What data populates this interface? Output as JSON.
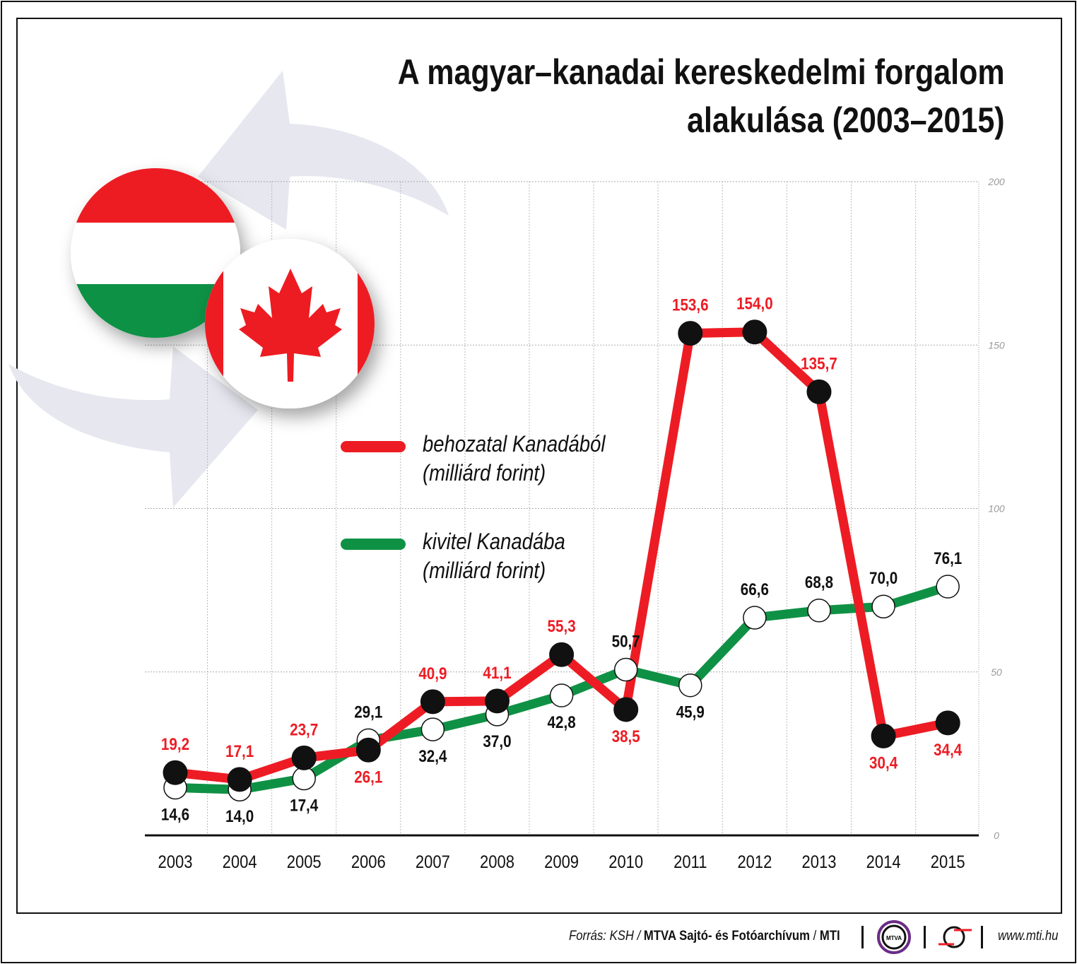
{
  "chart_data": {
    "type": "line",
    "title": "A magyar–kanadai kereskedelmi forgalom alakulása (2003–2015)",
    "title_lines": [
      "A magyar–kanadai kereskedelmi forgalom",
      "alakulása (2003–2015)"
    ],
    "categories": [
      "2003",
      "2004",
      "2005",
      "2006",
      "2007",
      "2008",
      "2009",
      "2010",
      "2011",
      "2012",
      "2013",
      "2014",
      "2015"
    ],
    "ylim": [
      0,
      200
    ],
    "yticks": [
      "0",
      "50",
      "100",
      "150",
      "200"
    ],
    "grid": true,
    "legend_position": "center-left",
    "series": [
      {
        "name": "behozatal Kanadából",
        "unit": "(milliárd forint)",
        "color": "#ed1c24",
        "values": [
          19.2,
          17.1,
          23.7,
          26.1,
          40.9,
          41.1,
          55.3,
          38.5,
          153.6,
          154.0,
          135.7,
          30.4,
          34.4
        ],
        "labels": [
          "19,2",
          "17,1",
          "23,7",
          "26,1",
          "40,9",
          "41,1",
          "55,3",
          "38,5",
          "153,6",
          "154,0",
          "135,7",
          "30,4",
          "34,4"
        ]
      },
      {
        "name": "kivitel Kanadába",
        "unit": "(milliárd forint)",
        "color": "#0f9145",
        "values": [
          14.6,
          14.0,
          17.4,
          29.1,
          32.4,
          37.0,
          42.8,
          50.7,
          45.9,
          66.6,
          68.8,
          70.0,
          76.1
        ],
        "labels": [
          "14,6",
          "14,0",
          "17,4",
          "29,1",
          "32,4",
          "37,0",
          "42,8",
          "50,7",
          "45,9",
          "66,6",
          "68,8",
          "70,0",
          "76,1"
        ]
      }
    ]
  },
  "footer": {
    "source_prefix": "Forrás: KSH / ",
    "source_bold": "MTVA Sajtó- és Fotóarchívum",
    "source_sep": " / ",
    "source_mti": "MTI",
    "logo_text": "MTVA",
    "website": "www.mti.hu"
  },
  "colors": {
    "import": "#ed1c24",
    "export": "#0f9145",
    "arrow": "#e6e7ef",
    "flag_green": "#0f9145",
    "flag_red": "#ed1c24"
  }
}
